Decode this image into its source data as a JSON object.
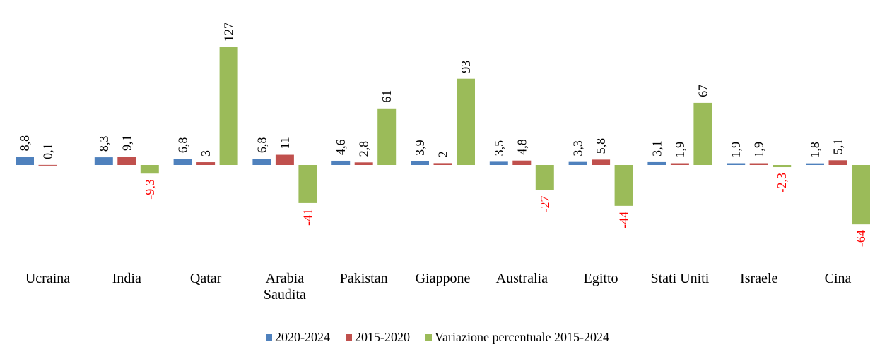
{
  "chart_data": {
    "type": "bar",
    "categories": [
      "Ucraina",
      "India",
      "Qatar",
      "Arabia Saudita",
      "Pakistan",
      "Giappone",
      "Australia",
      "Egitto",
      "Stati Uniti",
      "Israele",
      "Cina"
    ],
    "series": [
      {
        "name": "2020-2024",
        "color": "#4f81bd",
        "values": [
          8.8,
          8.3,
          6.8,
          6.8,
          4.6,
          3.9,
          3.5,
          3.3,
          3.1,
          1.9,
          1.8
        ],
        "value_labels": [
          "8,8",
          "8,3",
          "6,8",
          "6,8",
          "4,6",
          "3,9",
          "3,5",
          "3,3",
          "3,1",
          "1,9",
          "1,8"
        ]
      },
      {
        "name": "2015-2020",
        "color": "#c0504d",
        "values": [
          0.1,
          9.1,
          3,
          11,
          2.8,
          2,
          4.8,
          5.8,
          1.9,
          1.9,
          5.1
        ],
        "value_labels": [
          "0,1",
          "9,1",
          "3",
          "11",
          "2,8",
          "2",
          "4,8",
          "5,8",
          "1,9",
          "1,9",
          "5,1"
        ]
      },
      {
        "name": "Variazione percentuale 2015-2024",
        "color": "#9bbb59",
        "values": [
          null,
          -9.3,
          127,
          -41,
          61,
          93,
          -27,
          -44,
          67,
          -2.3,
          -64
        ],
        "value_labels": [
          null,
          "-9,3",
          "127",
          "-41",
          "61",
          "93",
          "-27",
          "-44",
          "67",
          "-2,3",
          "-64"
        ]
      }
    ],
    "negative_label_color": "#ff0000",
    "legend": "bottom"
  }
}
